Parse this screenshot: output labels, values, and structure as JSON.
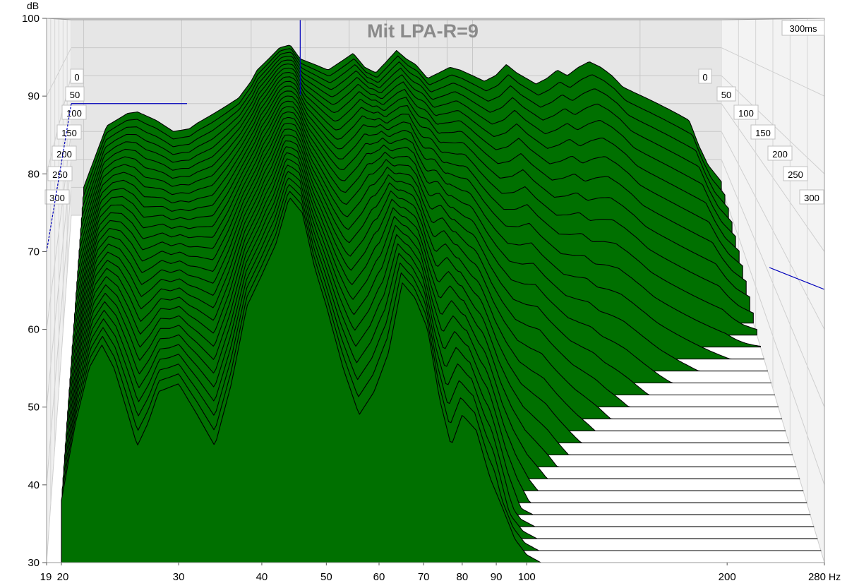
{
  "chart_data": {
    "type": "waterfall",
    "title": "Mit LPA-R=9",
    "y_unit": "dB",
    "x_unit": "Hz",
    "ylim": [
      30,
      100
    ],
    "y_ticks": [
      "100",
      "90",
      "80",
      "70",
      "60",
      "50",
      "40",
      "30"
    ],
    "x_ticks": [
      {
        "value": 19,
        "label": "19"
      },
      {
        "value": 20,
        "label": "20"
      },
      {
        "value": 30,
        "label": "30"
      },
      {
        "value": 40,
        "label": "40"
      },
      {
        "value": 50,
        "label": "50"
      },
      {
        "value": 60,
        "label": "60"
      },
      {
        "value": 70,
        "label": "70"
      },
      {
        "value": 80,
        "label": "80"
      },
      {
        "value": 90,
        "label": "90"
      },
      {
        "value": 100,
        "label": "100"
      },
      {
        "value": 200,
        "label": "200"
      },
      {
        "value": 280,
        "label": "280"
      }
    ],
    "x_scale": "log",
    "xlim": [
      19,
      280
    ],
    "time_axis_unit": "ms",
    "time_labels": [
      "0",
      "50",
      "100",
      "150",
      "200",
      "250",
      "300"
    ],
    "time_max_label": "300ms",
    "fill_color": "#007000",
    "stroke_color": "#000000",
    "cursor_color": "#0000bb",
    "cursor": {
      "freq_hz": 49,
      "level_db": 70
    },
    "slices": 30,
    "slice_interval_ms": 10.3,
    "first_slice": {
      "freq_hz": [
        20,
        22,
        24,
        25,
        27,
        29,
        31,
        32,
        34,
        36,
        38,
        40,
        41,
        43,
        45,
        47,
        49,
        52,
        55,
        58,
        61,
        64,
        67,
        70,
        73,
        76,
        79,
        83,
        87,
        91,
        95,
        100,
        105,
        110,
        115,
        120,
        125,
        130,
        136,
        142,
        148,
        155,
        162,
        170,
        178,
        186,
        195,
        205,
        215,
        225,
        235,
        245,
        255,
        265,
        275,
        280
      ],
      "level_db": [
        40,
        62,
        66.5,
        67,
        64,
        60,
        61,
        63,
        66,
        69,
        72,
        78,
        82,
        86,
        90,
        91,
        86,
        84,
        82,
        85,
        88,
        83,
        81,
        85,
        89,
        86,
        84,
        79,
        81,
        83,
        82,
        80,
        78,
        80,
        84,
        81,
        79,
        77,
        79,
        82,
        80,
        83,
        85,
        83,
        80,
        76,
        74,
        72,
        70,
        68,
        66,
        64,
        55,
        48,
        44,
        42
      ]
    },
    "last_slice": {
      "freq_hz": [
        20,
        21,
        22,
        23,
        24,
        25,
        26,
        27,
        28,
        30,
        32,
        34,
        36,
        38,
        40,
        42,
        44,
        46,
        48,
        50,
        53,
        56,
        59,
        62,
        65,
        68,
        71,
        74,
        77,
        80,
        84,
        88,
        92,
        96,
        100,
        105,
        110,
        115,
        120,
        125,
        130,
        135,
        140,
        145,
        150,
        155,
        160,
        165,
        170,
        175,
        180,
        185,
        190,
        195,
        200,
        205,
        210,
        215,
        220,
        230,
        240,
        250,
        260,
        270,
        280
      ],
      "level_db": [
        38,
        48,
        55,
        58,
        55,
        50,
        45,
        48,
        52,
        53,
        49,
        45,
        53,
        63,
        67,
        71,
        77,
        75,
        68,
        63,
        55,
        49,
        52,
        57,
        66,
        64,
        60,
        51,
        45,
        49,
        47,
        41,
        37,
        33,
        31,
        30,
        30,
        30,
        30,
        30,
        30,
        30,
        30,
        30,
        30,
        30,
        30,
        30,
        30,
        30,
        30,
        30,
        30,
        30,
        30,
        30,
        30,
        30,
        30,
        30,
        30,
        30,
        30,
        30,
        30
      ]
    }
  }
}
